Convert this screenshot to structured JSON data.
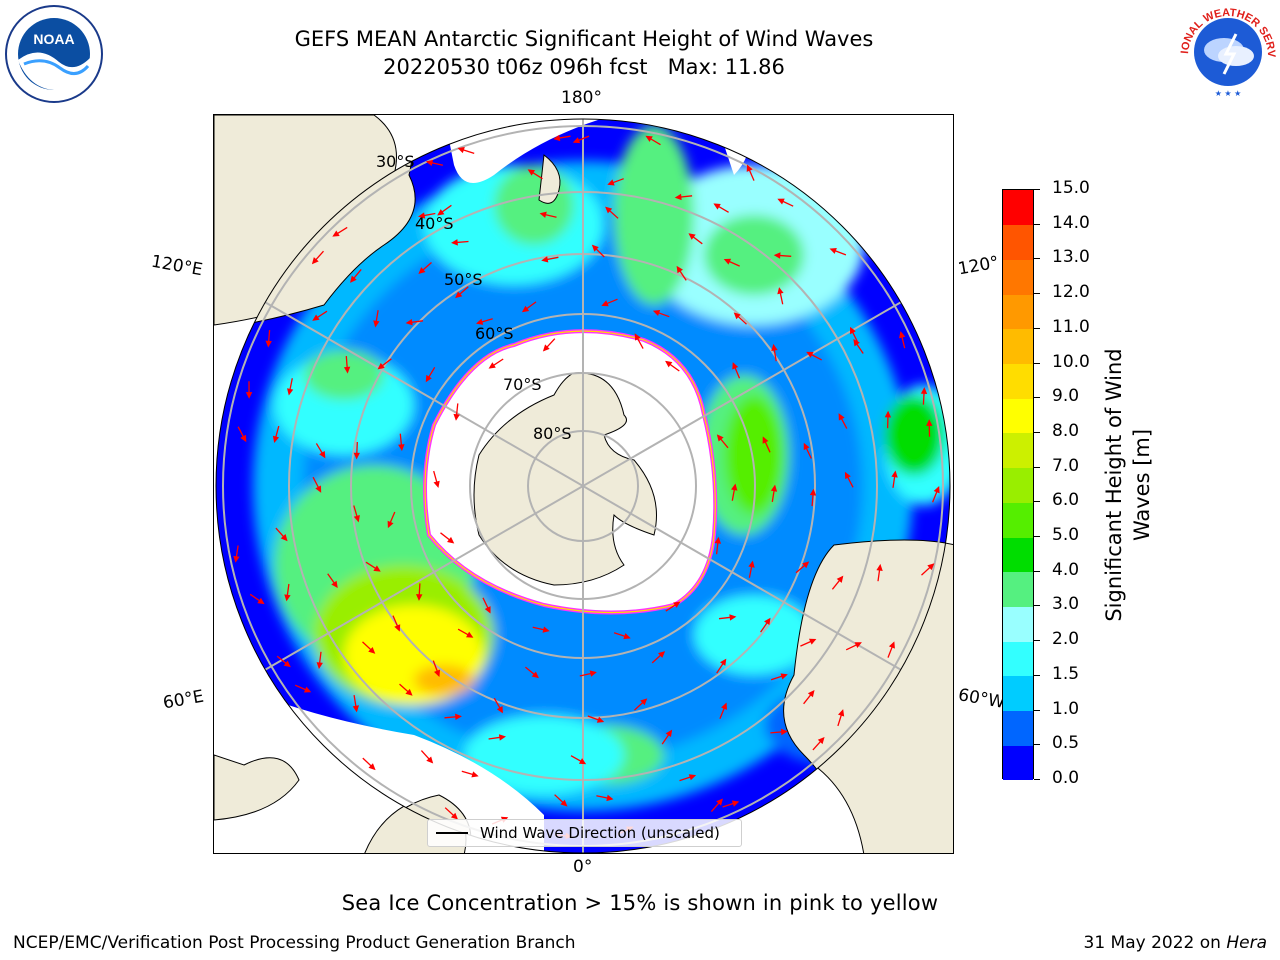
{
  "title": {
    "line1": "GEFS MEAN Antarctic Significant Height of Wind Waves",
    "line2": "20220530 t06z 096h fcst   Max: 11.86"
  },
  "logos": {
    "left": "noaa-logo",
    "right": "national-weather-service-logo"
  },
  "logo_text": {
    "noaa": "NOAA",
    "nws_ring": "NATIONAL WEATHER SERVICE"
  },
  "map": {
    "projection": "south-polar-stereographic",
    "lon_labels": {
      "top": "180°",
      "bottom": "0°",
      "upper_left": "120°E",
      "upper_right": "120°",
      "lower_left": "60°E",
      "lower_right": "60°W"
    },
    "lat_labels": [
      "30°S",
      "40°S",
      "50°S",
      "60°S",
      "70°S",
      "80°S"
    ],
    "colors": {
      "land": "#efebd9",
      "ice": "#ffffff",
      "sea_ice_edge": "#ff33ff",
      "arrows": "#ff0000"
    }
  },
  "legend": {
    "label": "Wind Wave Direction (unscaled)"
  },
  "colorbar": {
    "title_line1": "Significant Height of Wind",
    "title_line2": "Waves [m]",
    "ticks": [
      "0.0",
      "0.5",
      "1.0",
      "1.5",
      "2.0",
      "3.0",
      "4.0",
      "5.0",
      "6.0",
      "7.0",
      "8.0",
      "9.0",
      "10.0",
      "11.0",
      "12.0",
      "13.0",
      "14.0",
      "15.0"
    ],
    "colors": [
      "#0000ff",
      "#0066ff",
      "#00ccff",
      "#33ffff",
      "#99ffff",
      "#55f080",
      "#00dd00",
      "#55ee00",
      "#99ee00",
      "#ccf000",
      "#ffff00",
      "#ffdd00",
      "#ffbb00",
      "#ff9900",
      "#ff7700",
      "#ff5500",
      "#ff0000"
    ]
  },
  "chart_data": {
    "type": "heatmap",
    "title": "GEFS MEAN Antarctic Significant Height of Wind Waves",
    "subtitle": "20220530 t06z 096h fcst   Max: 11.86",
    "variable": "Significant Height of Wind Waves [m]",
    "max": 11.86,
    "scale_range": [
      0.0,
      15.0
    ],
    "scale_levels": [
      0.0,
      0.5,
      1.0,
      1.5,
      2.0,
      3.0,
      4.0,
      5.0,
      6.0,
      7.0,
      8.0,
      9.0,
      10.0,
      11.0,
      12.0,
      13.0,
      14.0,
      15.0
    ]
  },
  "note": "Sea Ice Concentration > 15% is shown in pink to yellow",
  "footer": {
    "left": "NCEP/EMC/Verification Post Processing Product Generation Branch",
    "right_date": "31 May 2022 on ",
    "right_host": "Hera"
  }
}
